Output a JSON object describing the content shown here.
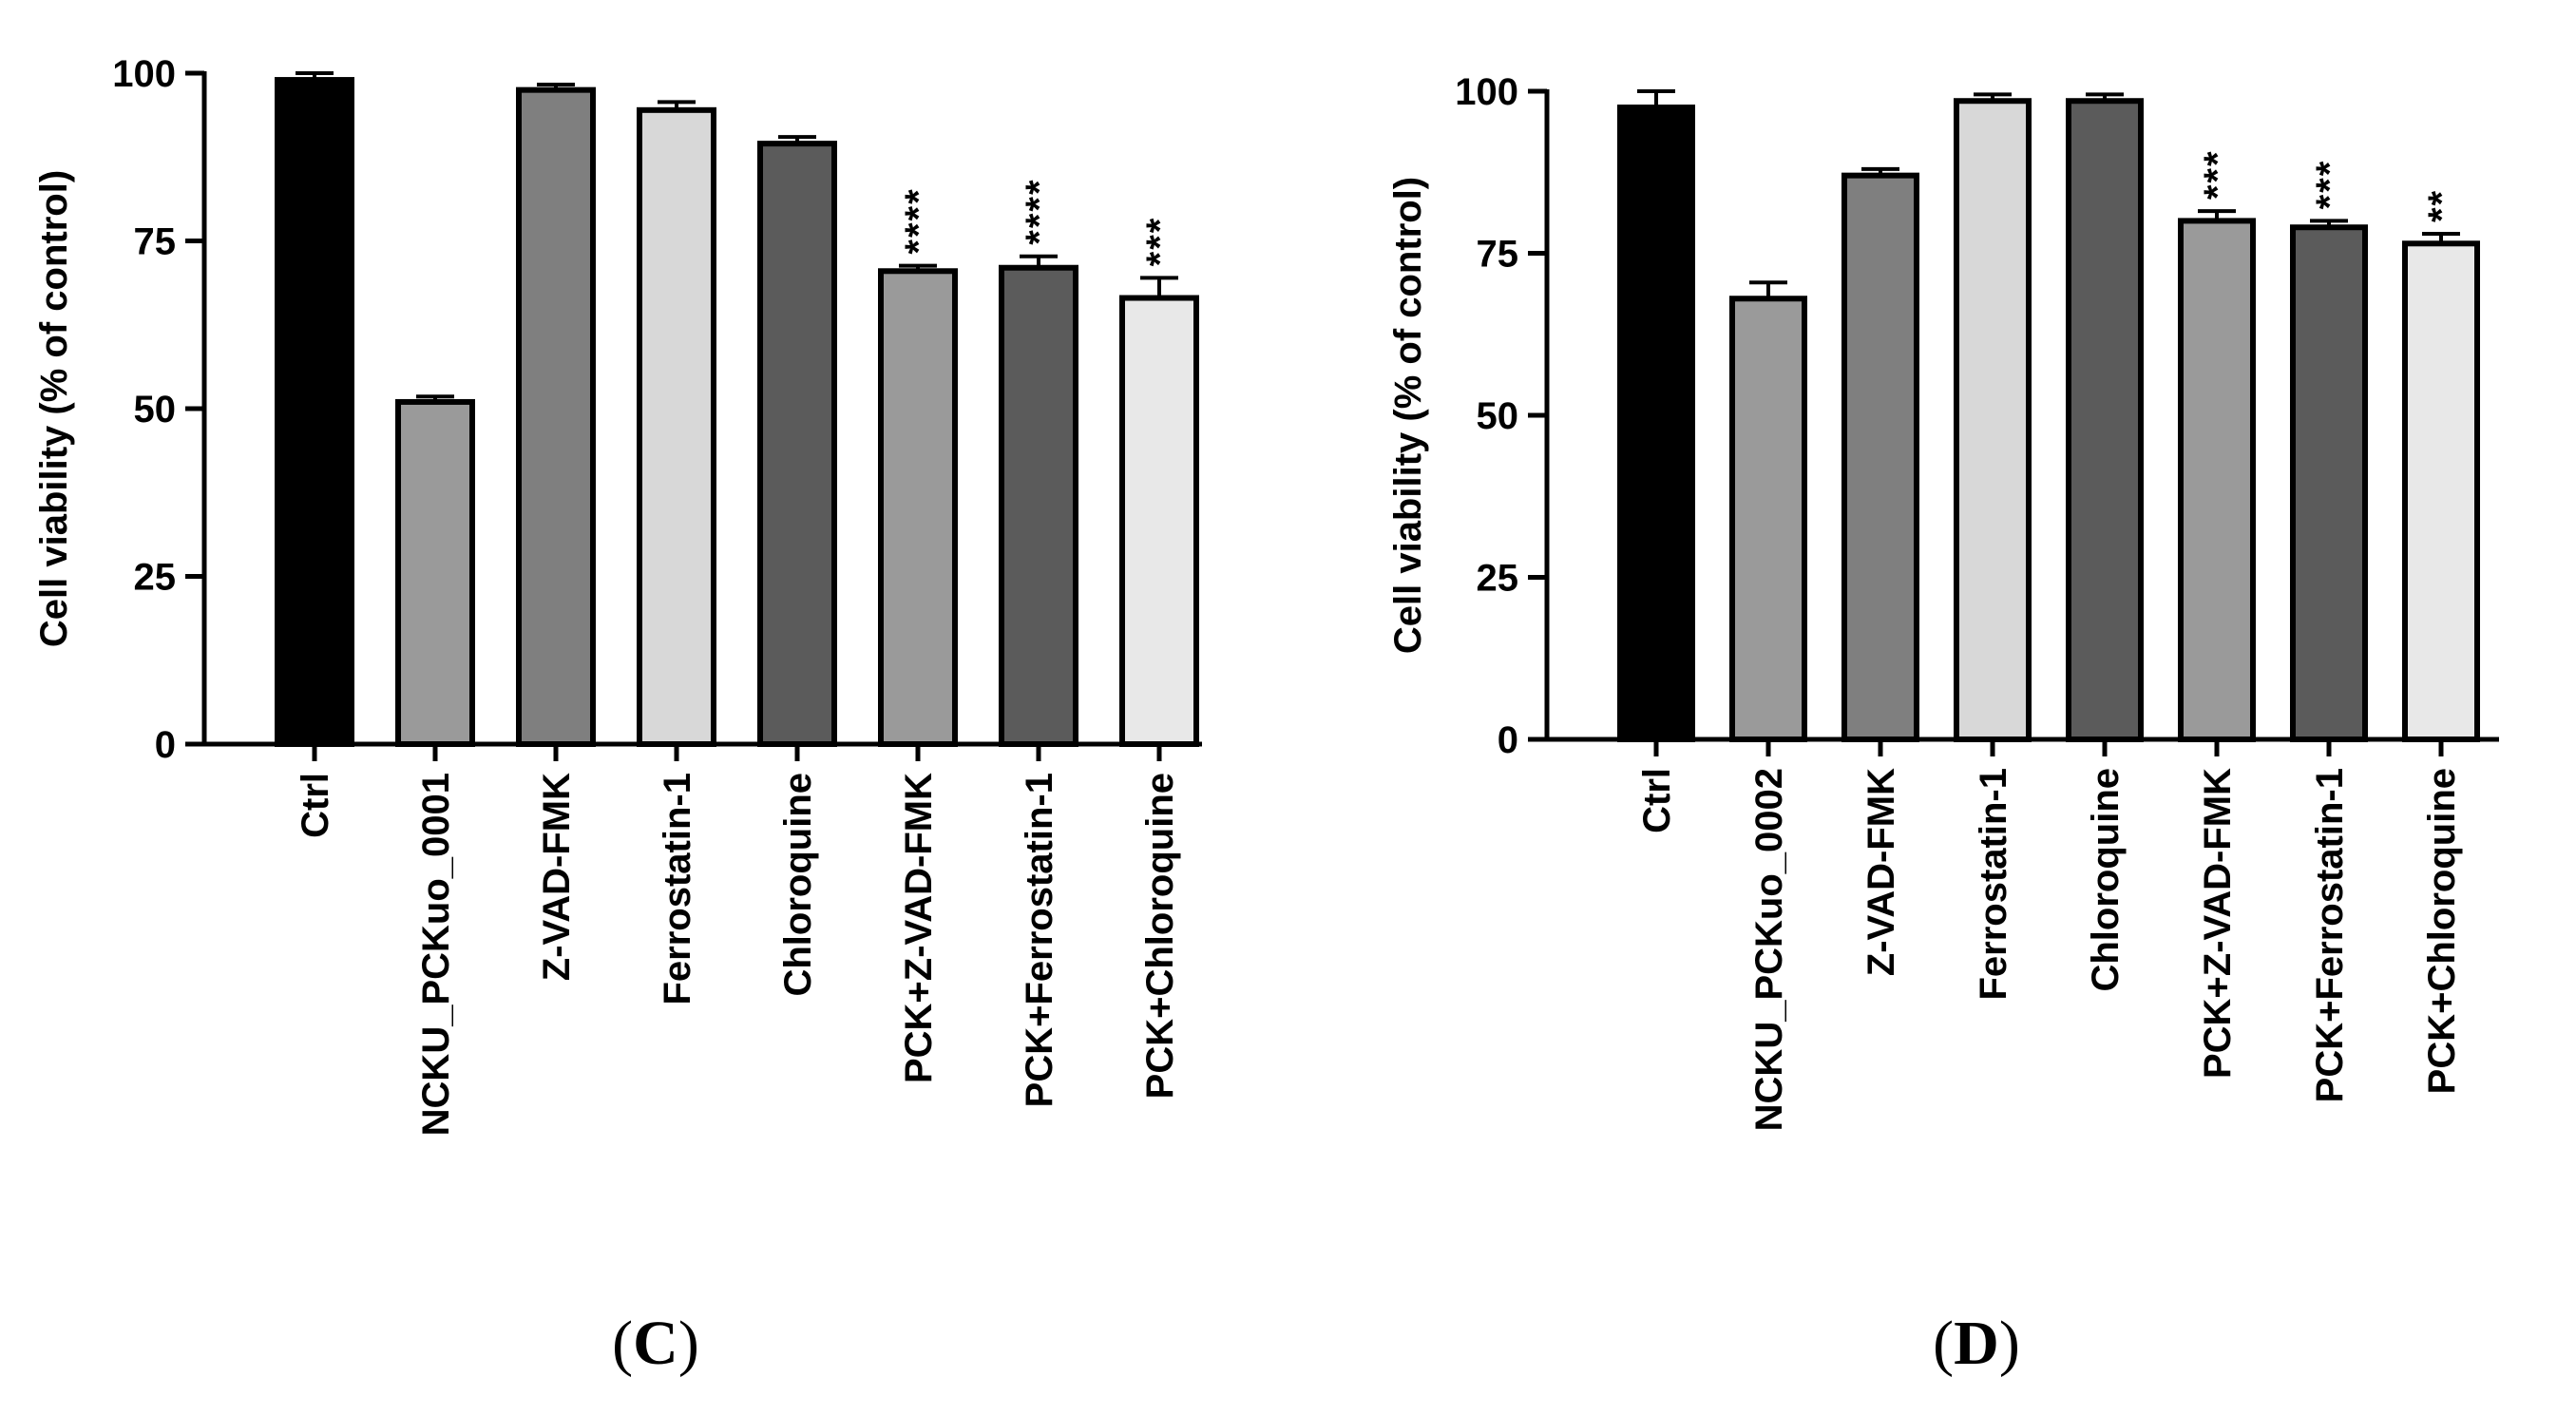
{
  "chart_data": [
    {
      "type": "bar",
      "panel_label": "C",
      "ylabel": "Cell viability (% of control)",
      "ylim": [
        0,
        100
      ],
      "yticks": [
        "0",
        "25",
        "50",
        "75",
        "100"
      ],
      "categories": [
        "Ctrl",
        "NCKU_PCKuo_0001",
        "Z-VAD-FMK",
        "Ferrostatin-1",
        "Chloroquine",
        "PCK+Z-VAD-FMK",
        "PCK+Ferrostatin-1",
        "PCK+Chloroquine"
      ],
      "values": [
        99,
        51,
        97.5,
        94.5,
        89.5,
        70.5,
        71,
        66.5
      ],
      "errors": [
        1.0,
        0.8,
        0.8,
        1.2,
        1.0,
        0.8,
        1.7,
        3.0
      ],
      "significance": [
        "",
        "",
        "",
        "",
        "",
        "****",
        "****",
        "***"
      ],
      "fill_colors": [
        "#000000",
        "#9a9a9a",
        "#7f7f7f",
        "#d8d8d8",
        "#5b5b5b",
        "#9a9a9a",
        "#5b5b5b",
        "#e8e8e8"
      ]
    },
    {
      "type": "bar",
      "panel_label": "D",
      "ylabel": "Cell viability (% of control)",
      "ylim": [
        0,
        100
      ],
      "yticks": [
        "0",
        "25",
        "50",
        "75",
        "100"
      ],
      "categories": [
        "Ctrl",
        "NCKU_PCKuo_0002",
        "Z-VAD-FMK",
        "Ferrostatin-1",
        "Chloroquine",
        "PCK+Z-VAD-FMK",
        "PCK+Ferrostatin-1",
        "PCK+Chloroquine"
      ],
      "values": [
        97.5,
        68,
        87,
        98.5,
        98.5,
        80,
        79,
        76.5
      ],
      "errors": [
        2.5,
        2.5,
        1.0,
        1.0,
        1.0,
        1.5,
        1.0,
        1.5
      ],
      "significance": [
        "",
        "",
        "",
        "",
        "",
        "***",
        "***",
        "**"
      ],
      "fill_colors": [
        "#000000",
        "#9a9a9a",
        "#7f7f7f",
        "#d8d8d8",
        "#5b5b5b",
        "#9a9a9a",
        "#5b5b5b",
        "#e8e8e8"
      ]
    }
  ]
}
